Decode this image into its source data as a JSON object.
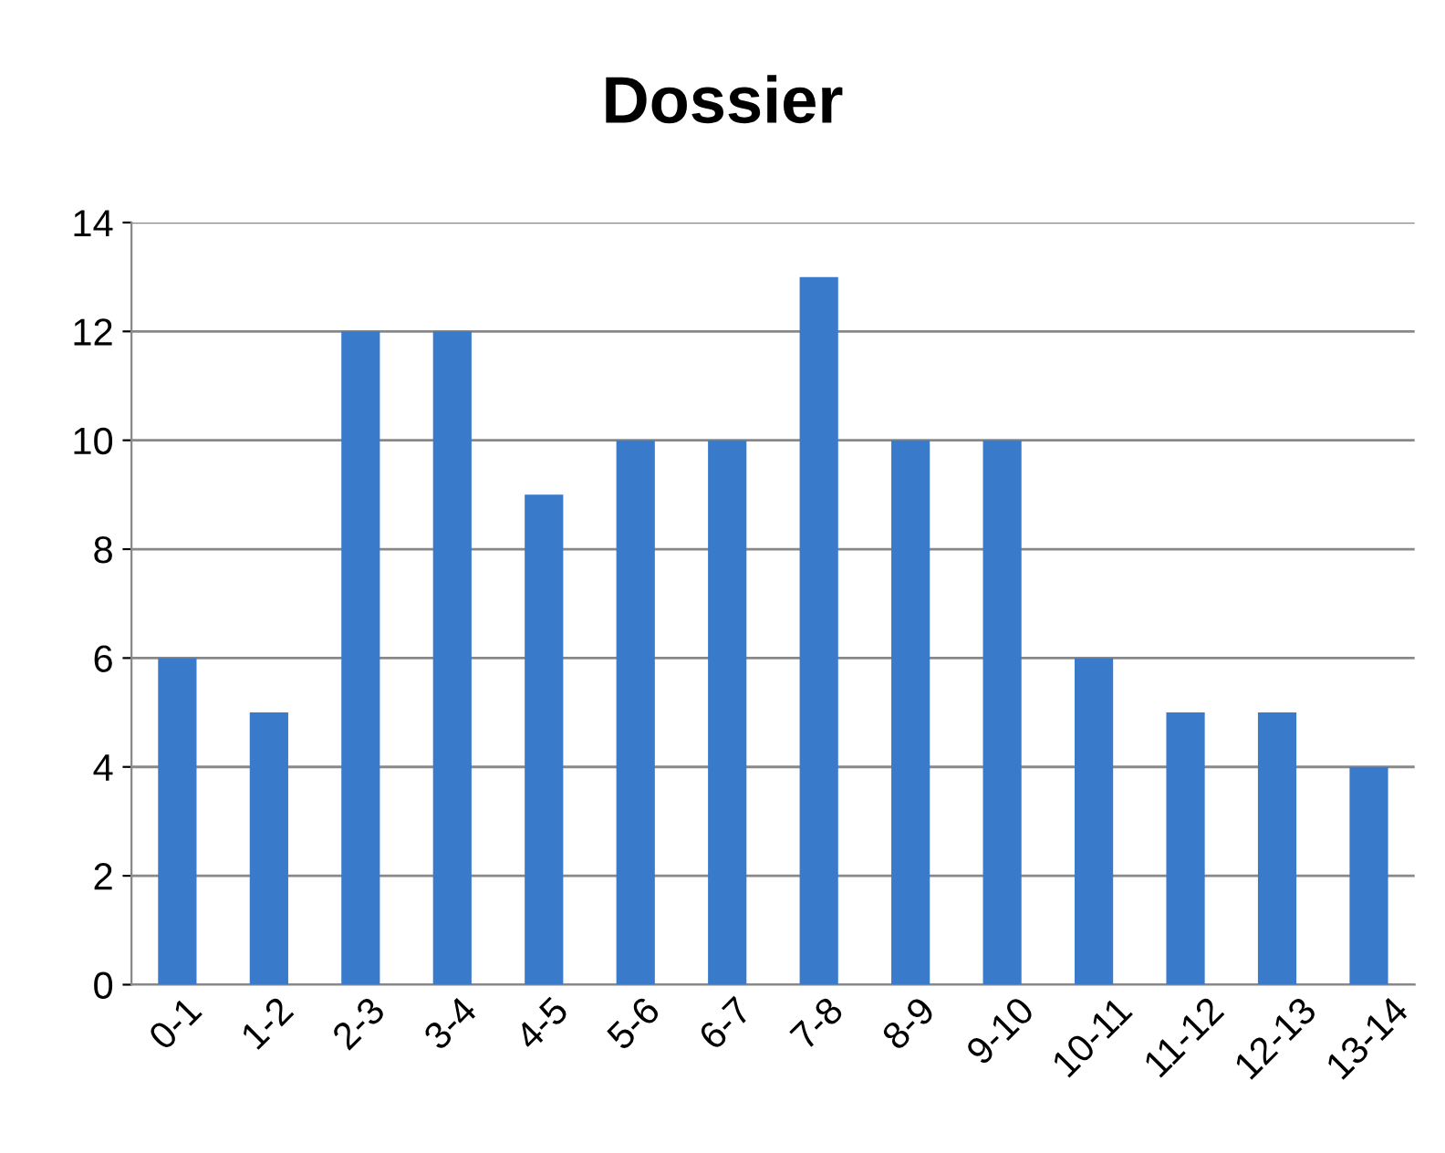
{
  "chart_data": {
    "type": "bar",
    "title": "Dossier",
    "categories": [
      "0-1",
      "1-2",
      "2-3",
      "3-4",
      "4-5",
      "5-6",
      "6-7",
      "7-8",
      "8-9",
      "9-10",
      "10-11",
      "11-12",
      "12-13",
      "13-14"
    ],
    "values": [
      6,
      5,
      12,
      12,
      9,
      10,
      10,
      13,
      10,
      10,
      6,
      5,
      5,
      4
    ],
    "color": "#3a7acb",
    "ylim": [
      0,
      14
    ],
    "yticks": [
      0,
      2,
      4,
      6,
      8,
      10,
      12,
      14
    ],
    "grid": "y"
  }
}
